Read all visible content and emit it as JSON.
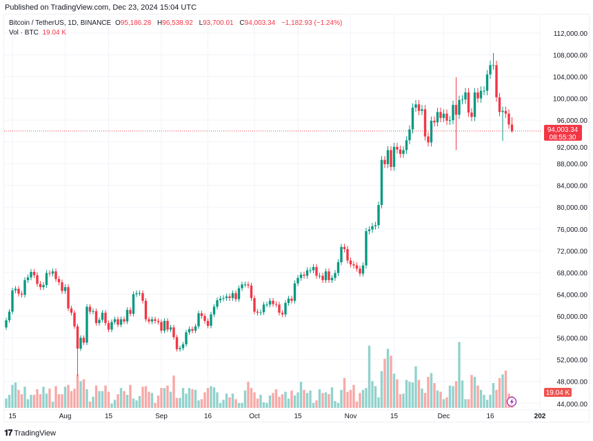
{
  "published": "Published on TradingView.com, Dec 23, 2024 15:04 UTC",
  "legend": {
    "symbol": "Bitcoin / TetherUS, 1D, BINANCE",
    "o_label": "O",
    "o": "95,186.28",
    "h_label": "H",
    "h": "96,538.92",
    "l_label": "L",
    "l": "93,700.01",
    "c_label": "C",
    "c": "94,003.34",
    "change": "−1,182.93 (−1.24%)",
    "vol_label": "Vol · BTC",
    "vol": "19.04 K"
  },
  "price_label": {
    "price": "94,003.34",
    "countdown": "08:55:30"
  },
  "vol_label": "19.04 K",
  "brand": "TradingView",
  "colors": {
    "up": "#089981",
    "down": "#f23645",
    "vol_up": "#92d2cc",
    "vol_down": "#f7a9a7",
    "grid": "#f0f3fa"
  },
  "chart_data": {
    "type": "candlestick",
    "symbol": "BTCUSDT",
    "interval": "1D",
    "ylim": [
      44000,
      112000
    ],
    "y_ticks": [
      "44,000.00",
      "48,000.00",
      "52,000.00",
      "56,000.00",
      "60,000.00",
      "64,000.00",
      "68,000.00",
      "72,000.00",
      "76,000.00",
      "80,000.00",
      "84,000.00",
      "88,000.00",
      "92,000.00",
      "96,000.00",
      "100,000.00",
      "104,000.00",
      "108,000.00",
      "112,000.00"
    ],
    "x_ticks": [
      {
        "date": "2024-07-15",
        "label": "15"
      },
      {
        "date": "2024-08-01",
        "label": "Aug"
      },
      {
        "date": "2024-08-15",
        "label": "15"
      },
      {
        "date": "2024-09-01",
        "label": "Sep"
      },
      {
        "date": "2024-09-16",
        "label": "16"
      },
      {
        "date": "2024-10-01",
        "label": "Oct"
      },
      {
        "date": "2024-10-15",
        "label": "15"
      },
      {
        "date": "2024-11-01",
        "label": "Nov"
      },
      {
        "date": "2024-11-15",
        "label": "15"
      },
      {
        "date": "2024-12-01",
        "label": "Dec"
      },
      {
        "date": "2024-12-16",
        "label": "16"
      },
      {
        "date": "2025-01-01",
        "label": "202"
      }
    ],
    "grid": true,
    "last_price": 94003.34,
    "first_open": 57900,
    "months": [
      {
        "month": "2024-07",
        "first_day": 13,
        "close": [
          59200,
          60800,
          64700,
          65000,
          64100,
          63900,
          66600,
          67100,
          68100,
          67500,
          65900,
          65300,
          65700,
          67900,
          67800,
          68200,
          66800,
          66200,
          64600
        ],
        "volume_k": [
          15,
          21,
          37,
          41,
          29,
          22,
          34,
          14,
          21,
          21,
          30,
          22,
          34,
          23,
          31,
          10,
          35,
          22,
          22
        ]
      },
      {
        "month": "2024-08",
        "first_day": 1,
        "close": [
          65300,
          61400,
          60600,
          58100,
          54000,
          56000,
          55100,
          61700,
          60800,
          60900,
          58700,
          59300,
          60600,
          58700,
          57500,
          58900,
          59400,
          58400,
          59400,
          59000,
          61100,
          60400,
          64000,
          64200,
          64200,
          62800,
          59400,
          59000,
          59400,
          59100,
          58900
        ],
        "volume_k": [
          34,
          37,
          27,
          31,
          54,
          43,
          46,
          30,
          10,
          18,
          36,
          27,
          27,
          36,
          26,
          7,
          13,
          22,
          32,
          27,
          21,
          37,
          15,
          12,
          19,
          34,
          35,
          26,
          24,
          8,
          20
        ]
      },
      {
        "month": "2024-09",
        "first_day": 1,
        "close": [
          57300,
          59100,
          57500,
          57900,
          56100,
          53900,
          54100,
          54800,
          57000,
          57600,
          57300,
          58100,
          60500,
          60000,
          59100,
          58200,
          60300,
          61700,
          62900,
          63200,
          63300,
          63600,
          63300,
          64200,
          63100,
          65100,
          65800,
          65800,
          65600,
          63300
        ],
        "volume_k": [
          32,
          32,
          36,
          26,
          52,
          16,
          16,
          32,
          23,
          32,
          30,
          29,
          12,
          14,
          25,
          32,
          35,
          33,
          25,
          8,
          13,
          23,
          17,
          23,
          14,
          8,
          8,
          28,
          42,
          32
        ]
      },
      {
        "month": "2024-10",
        "first_day": 1,
        "close": [
          60800,
          60600,
          60700,
          62100,
          62100,
          62800,
          62200,
          62100,
          60600,
          60300,
          62400,
          63200,
          62800,
          66000,
          67000,
          67600,
          67400,
          68400,
          68400,
          69000,
          67400,
          67400,
          66600,
          68200,
          66600,
          67000,
          67900,
          69900,
          72700,
          72300,
          70200
        ],
        "volume_k": [
          25,
          15,
          21,
          9,
          8,
          20,
          24,
          30,
          18,
          22,
          26,
          15,
          28,
          20,
          25,
          42,
          29,
          24,
          28,
          8,
          12,
          30,
          24,
          25,
          22,
          33,
          11,
          8,
          29,
          48,
          26
        ]
      },
      {
        "month": "2024-11",
        "first_day": 1,
        "close": [
          69500,
          69300,
          68700,
          67800,
          69300,
          75600,
          75900,
          76500,
          76700,
          80400,
          88700,
          87900,
          90500,
          87400,
          91100,
          90600,
          89800,
          90500,
          92300,
          94300,
          98300,
          98900,
          97700,
          98000,
          93000,
          91900,
          95900,
          95600,
          97500,
          96400
        ],
        "volume_k": [
          29,
          37,
          10,
          24,
          29,
          32,
          100,
          43,
          35,
          17,
          59,
          79,
          95,
          84,
          55,
          46,
          22,
          23,
          45,
          42,
          41,
          67,
          45,
          31,
          24,
          50,
          56,
          40,
          28,
          26
        ]
      },
      {
        "month": "2024-12",
        "first_day": 1,
        "close": [
          97200,
          95900,
          96000,
          98800,
          97000,
          99700,
          99800,
          101100,
          97400,
          96600,
          101100,
          100000,
          101400,
          101400,
          104400,
          106100,
          106100,
          100200,
          97500,
          97700,
          97200,
          95200,
          94003.34
        ],
        "volume_k": [
          14,
          17,
          36,
          35,
          43,
          106,
          44,
          14,
          14,
          53,
          50,
          36,
          29,
          21,
          13,
          21,
          40,
          29,
          48,
          54,
          60,
          23,
          19.04
        ]
      }
    ],
    "wicks": {
      "2024-08-05": {
        "low": 49000
      },
      "2024-12-05": {
        "high": 103900,
        "low": 90500
      },
      "2024-12-17": {
        "high": 108350
      },
      "2024-12-20": {
        "low": 92200
      },
      "2024-12-23": {
        "high": 96538.92,
        "low": 93700.01
      }
    }
  }
}
